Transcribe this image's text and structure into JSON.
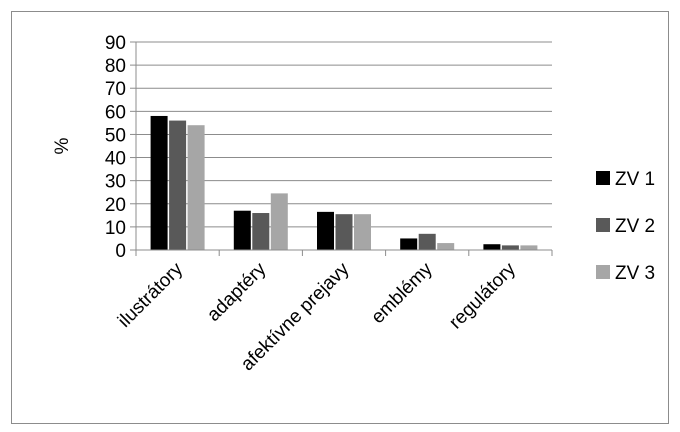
{
  "chart_data": {
    "type": "bar",
    "title": "",
    "xlabel": "",
    "ylabel": "%",
    "ylim": [
      0,
      90
    ],
    "yticks": [
      0,
      10,
      20,
      30,
      40,
      50,
      60,
      70,
      80,
      90
    ],
    "grid": true,
    "legend_position": "right",
    "categories": [
      "ilustrátory",
      "adaptéry",
      "afektívne prejavy",
      "emblémy",
      "regulátory"
    ],
    "series": [
      {
        "name": "ZV 1",
        "color": "#000000",
        "values": [
          58,
          17,
          16.5,
          5,
          2.5
        ]
      },
      {
        "name": "ZV 2",
        "color": "#595959",
        "values": [
          56,
          16,
          15.5,
          7,
          2
        ]
      },
      {
        "name": "ZV 3",
        "color": "#a6a6a6",
        "values": [
          54,
          24.5,
          15.5,
          3,
          2
        ]
      }
    ]
  }
}
